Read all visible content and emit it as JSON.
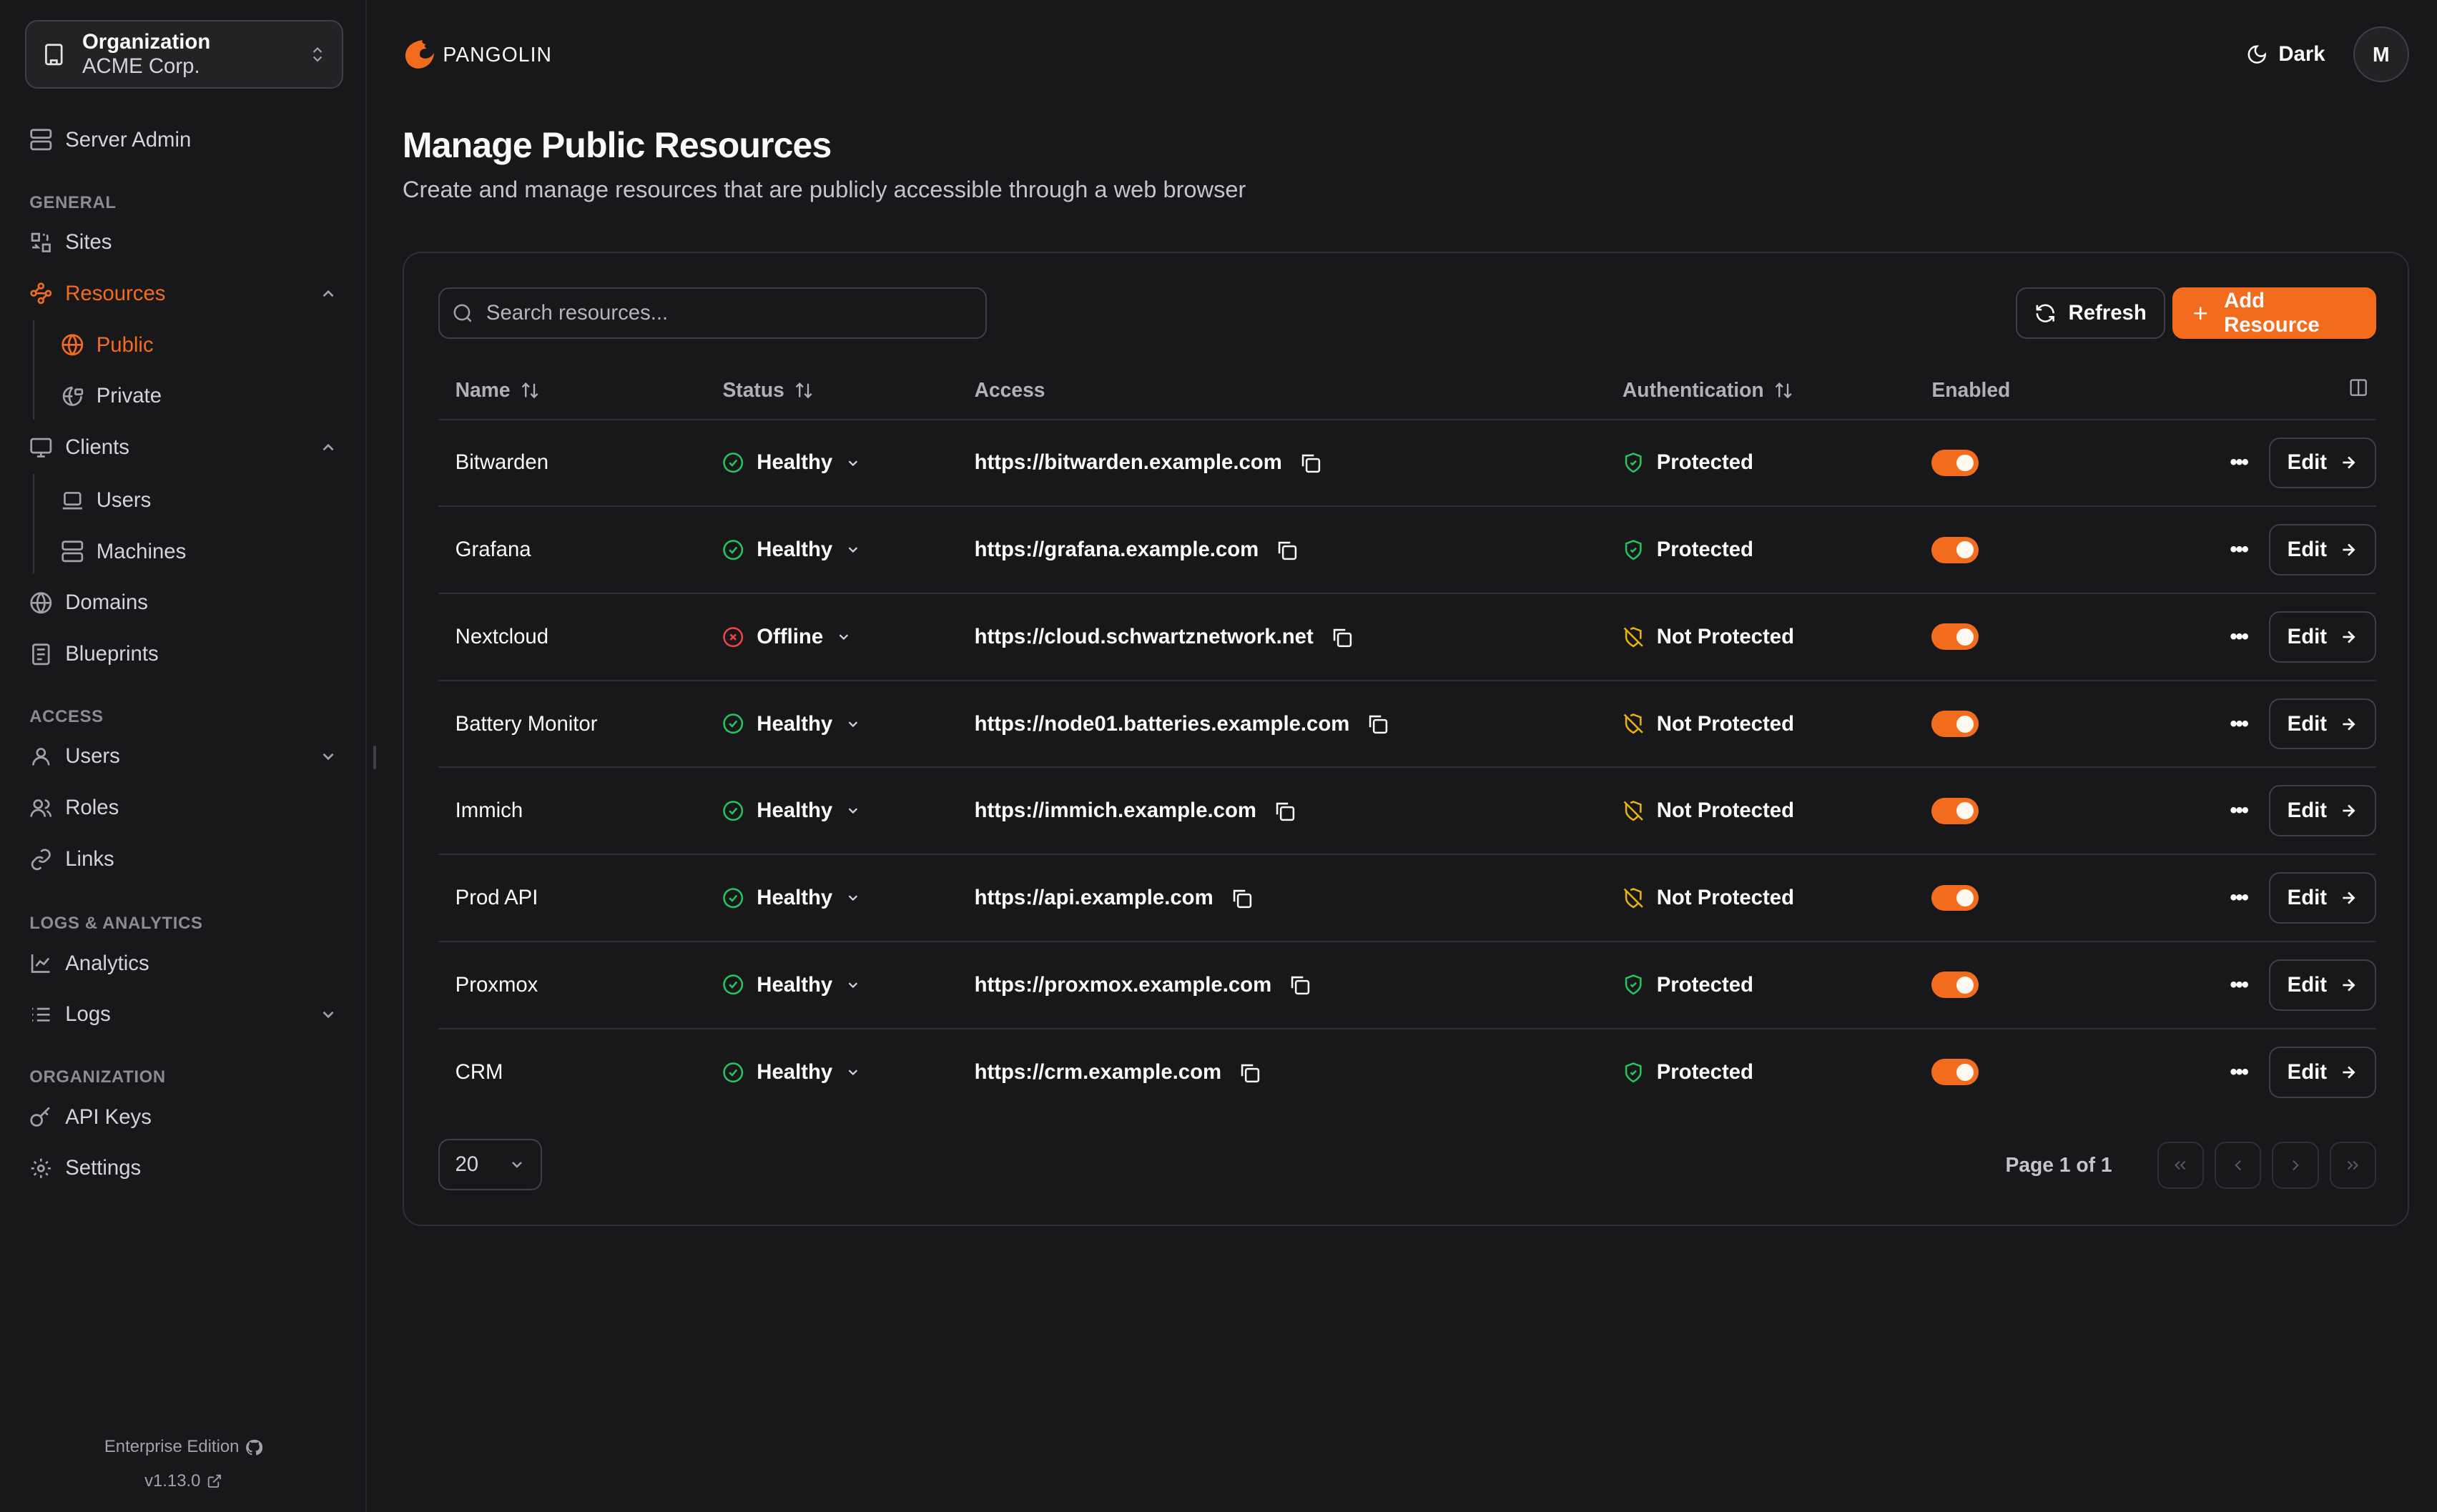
{
  "org": {
    "label": "Organization",
    "name": "ACME Corp."
  },
  "sidebar": {
    "server_admin": "Server Admin",
    "sections": [
      "GENERAL",
      "ACCESS",
      "LOGS & ANALYTICS",
      "ORGANIZATION"
    ],
    "items": {
      "sites": "Sites",
      "resources": "Resources",
      "public": "Public",
      "private": "Private",
      "clients": "Clients",
      "users_client": "Users",
      "machines": "Machines",
      "domains": "Domains",
      "blueprints": "Blueprints",
      "users": "Users",
      "roles": "Roles",
      "links": "Links",
      "analytics": "Analytics",
      "logs": "Logs",
      "api_keys": "API Keys",
      "settings": "Settings"
    },
    "edition": "Enterprise Edition",
    "version": "v1.13.0"
  },
  "header": {
    "brand": "PANGOLIN",
    "theme": "Dark",
    "avatar": "M"
  },
  "page": {
    "title": "Manage Public Resources",
    "subtitle": "Create and manage resources that are publicly accessible through a web browser"
  },
  "toolbar": {
    "search_placeholder": "Search resources...",
    "refresh": "Refresh",
    "add": "Add Resource"
  },
  "table": {
    "columns": [
      "Name",
      "Status",
      "Access",
      "Authentication",
      "Enabled"
    ],
    "rows": [
      {
        "name": "Bitwarden",
        "status": "Healthy",
        "access": "https://bitwarden.example.com",
        "auth": "Protected",
        "enabled": true
      },
      {
        "name": "Grafana",
        "status": "Healthy",
        "access": "https://grafana.example.com",
        "auth": "Protected",
        "enabled": true
      },
      {
        "name": "Nextcloud",
        "status": "Offline",
        "access": "https://cloud.schwartznetwork.net",
        "auth": "Not Protected",
        "enabled": true
      },
      {
        "name": "Battery Monitor",
        "status": "Healthy",
        "access": "https://node01.batteries.example.com",
        "auth": "Not Protected",
        "enabled": true
      },
      {
        "name": "Immich",
        "status": "Healthy",
        "access": "https://immich.example.com",
        "auth": "Not Protected",
        "enabled": true
      },
      {
        "name": "Prod API",
        "status": "Healthy",
        "access": "https://api.example.com",
        "auth": "Not Protected",
        "enabled": true
      },
      {
        "name": "Proxmox",
        "status": "Healthy",
        "access": "https://proxmox.example.com",
        "auth": "Protected",
        "enabled": true
      },
      {
        "name": "CRM",
        "status": "Healthy",
        "access": "https://crm.example.com",
        "auth": "Protected",
        "enabled": true
      }
    ],
    "edit_label": "Edit"
  },
  "pagination": {
    "page_size": "20",
    "page_text": "Page 1 of 1"
  },
  "colors": {
    "accent": "#f36b1c",
    "healthy": "#22c55e",
    "offline": "#ef4444",
    "not_protected": "#eab308"
  }
}
